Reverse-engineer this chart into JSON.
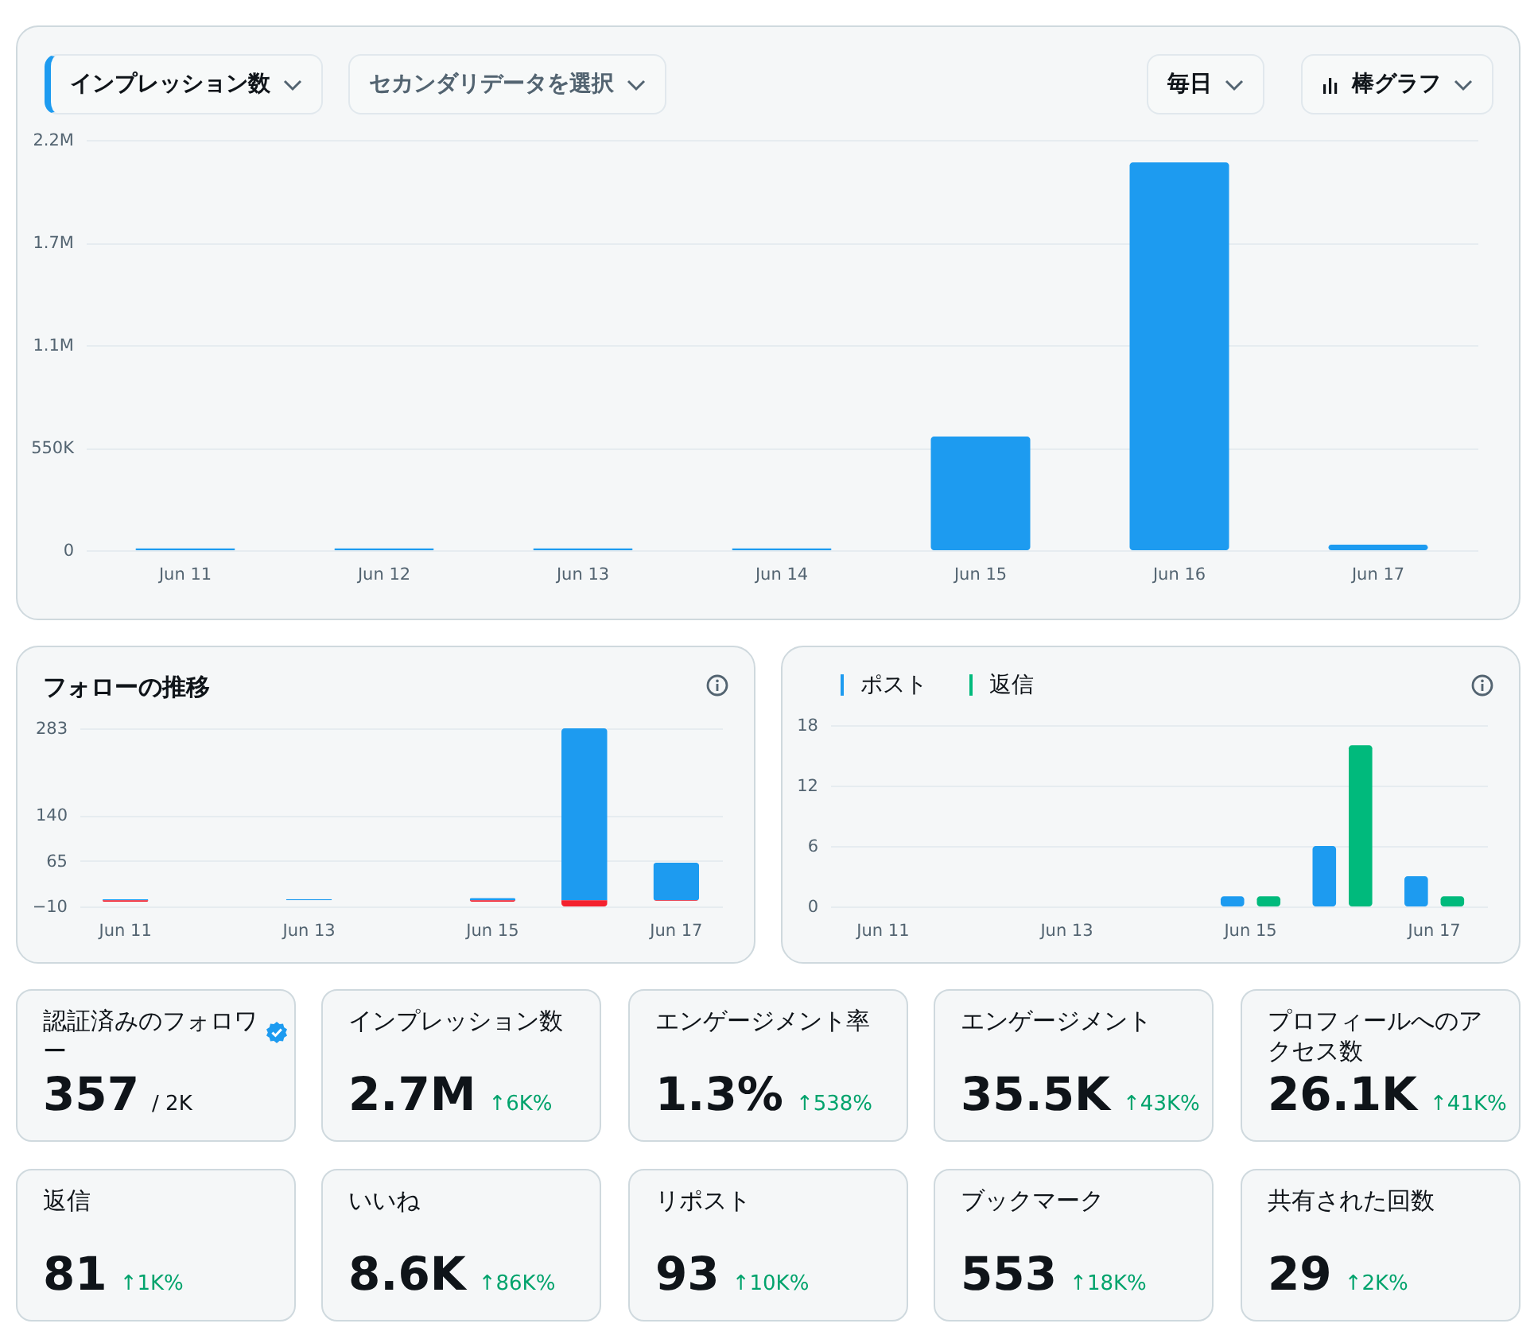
{
  "chart_data": [
    {
      "type": "bar",
      "title": "インプレッション数",
      "categories": [
        "Jun 11",
        "Jun 12",
        "Jun 13",
        "Jun 14",
        "Jun 15",
        "Jun 16",
        "Jun 17"
      ],
      "values": [
        10000,
        10000,
        10000,
        10000,
        610000,
        2080000,
        30000
      ],
      "color": "#1d9bf0",
      "ylim": [
        0,
        2200000
      ],
      "yticks": [
        0,
        {
          "value": 550000,
          "label": "550K"
        },
        {
          "value": 1100000,
          "label": "1.1M"
        },
        {
          "value": 1650000,
          "label": "1.7M"
        },
        {
          "value": 2200000,
          "label": "2.2M"
        }
      ],
      "grid": "y",
      "annotations": [
        "セカンダリデータを選択",
        "毎日",
        "棒グラフ"
      ]
    },
    {
      "type": "bar",
      "title": "フォローの推移",
      "categories": [
        "Jun 11",
        null,
        "Jun 13",
        null,
        "Jun 15",
        null,
        "Jun 17"
      ],
      "stacked": true,
      "series": [
        {
          "color": "#1d9bf0",
          "values": [
            2,
            0,
            2,
            0,
            4,
            283,
            62
          ]
        },
        {
          "color": "#f4212e",
          "values": [
            -2,
            0,
            0,
            0,
            -2,
            -10,
            -1
          ]
        }
      ],
      "ylim": [
        -10,
        283
      ],
      "yticks": [
        -10,
        65,
        140,
        283
      ],
      "grid": "y"
    },
    {
      "type": "bar",
      "categories": [
        "Jun 11",
        null,
        "Jun 13",
        null,
        "Jun 15",
        null,
        "Jun 17"
      ],
      "series": [
        {
          "name": "ポスト",
          "color": "#1d9bf0",
          "values": [
            0,
            0,
            0,
            0,
            1,
            6,
            3
          ]
        },
        {
          "name": "返信",
          "color": "#00ba7c",
          "values": [
            0,
            0,
            0,
            0,
            1,
            16,
            1
          ]
        }
      ],
      "ylim": [
        0,
        18
      ],
      "yticks": [
        0,
        6,
        12,
        18
      ],
      "grid": "y",
      "legend": "top left"
    },
    {
      "type": "other",
      "annotations": [
        "認証済みのフォロワー",
        "357",
        "/ 2K",
        "インプレッション数",
        "2.7M",
        "↑6K%",
        "エンゲージメント率",
        "1.3%",
        "↑538%",
        "エンゲージメント",
        "35.5K",
        "↑43K%",
        "プロフィールへのアクセス数",
        "26.1K",
        "↑41K%",
        "返信",
        "81",
        "↑1K%",
        "いいね",
        "8.6K",
        "↑86K%",
        "リポスト",
        "93",
        "↑10K%",
        "ブックマーク",
        "553",
        "↑18K%",
        "共有された回数",
        "29",
        "↑2K%"
      ]
    }
  ]
}
